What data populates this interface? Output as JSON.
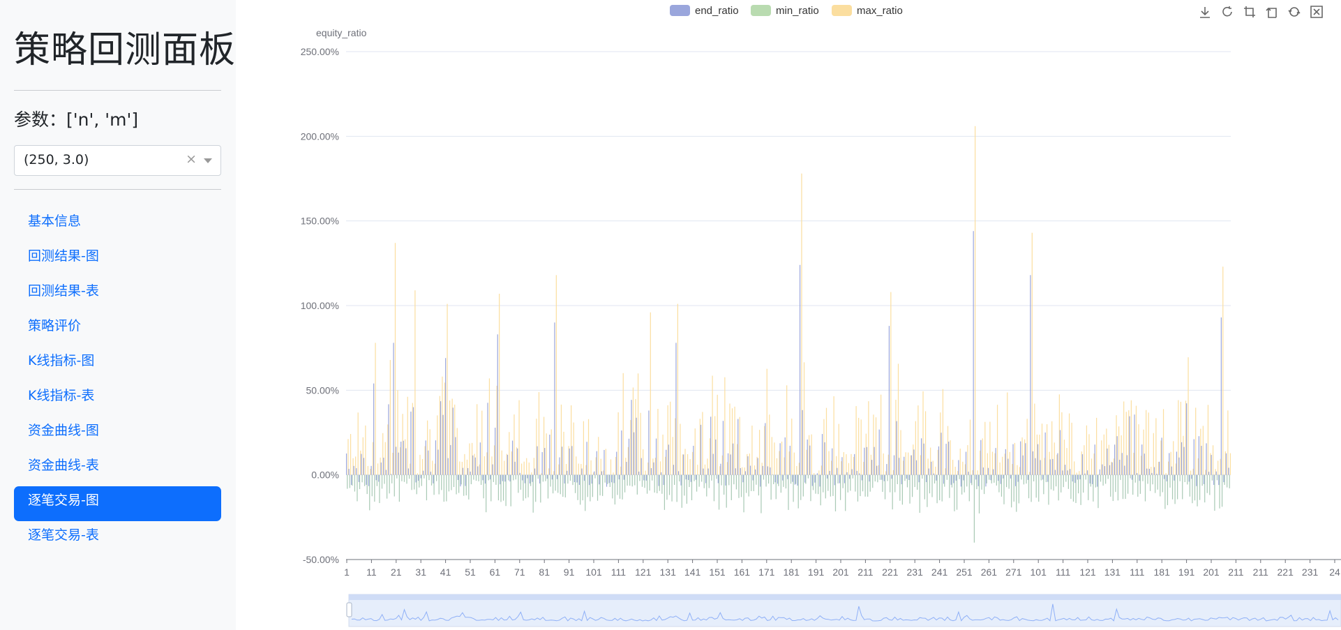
{
  "sidebar": {
    "title": "策略回测面板",
    "param_label": "参数：['n', 'm']",
    "param_select": {
      "value": "(250, 3.0)",
      "clear_icon": "×"
    },
    "nav_items": [
      {
        "label": "基本信息",
        "active": false
      },
      {
        "label": "回测结果-图",
        "active": false
      },
      {
        "label": "回测结果-表",
        "active": false
      },
      {
        "label": "策略评价",
        "active": false
      },
      {
        "label": "K线指标-图",
        "active": false
      },
      {
        "label": "K线指标-表",
        "active": false
      },
      {
        "label": "资金曲线-图",
        "active": false
      },
      {
        "label": "资金曲线-表",
        "active": false
      },
      {
        "label": "逐笔交易-图",
        "active": true
      },
      {
        "label": "逐笔交易-表",
        "active": false
      }
    ]
  },
  "toolbar": {
    "icons": [
      "download-icon",
      "refresh-icon",
      "crop-icon",
      "crop-back-icon",
      "restore-icon",
      "dataview-icon"
    ]
  },
  "colors": {
    "end_ratio": "#9aa6dc",
    "min_ratio": "#b9dbb0",
    "max_ratio": "#fbde9f",
    "accent": "#0d6efd",
    "gridline": "#e0e6f1"
  },
  "chart_data": {
    "type": "bar",
    "ylabel": "equity_ratio",
    "legend": [
      "end_ratio",
      "min_ratio",
      "max_ratio"
    ],
    "legend_position": "top-center",
    "ylim": [
      -0.5,
      2.5
    ],
    "y_ticks": [
      -0.5,
      0.0,
      0.5,
      1.0,
      1.5,
      2.0,
      2.5
    ],
    "y_tick_labels": [
      "-50.00%",
      "0.00%",
      "50.00%",
      "100.00%",
      "150.00%",
      "200.00%",
      "250.00%"
    ],
    "x_tick_labels": [
      "1",
      "11",
      "21",
      "31",
      "41",
      "51",
      "61",
      "71",
      "81",
      "91",
      "101",
      "111",
      "121",
      "131",
      "141",
      "151",
      "161",
      "171",
      "181",
      "191",
      "201",
      "211",
      "221",
      "231",
      "241",
      "251",
      "261",
      "271",
      "101",
      "111",
      "121",
      "131",
      "111",
      "181",
      "191",
      "201",
      "211",
      "211",
      "221",
      "231",
      "24"
    ],
    "highlights": [
      {
        "x": 11,
        "end_ratio": 0.54,
        "max_ratio": 0.78
      },
      {
        "x": 19,
        "end_ratio": 0.78,
        "max_ratio": 1.37
      },
      {
        "x": 27,
        "end_ratio": 0.4,
        "max_ratio": 1.09
      },
      {
        "x": 40,
        "end_ratio": 0.69,
        "max_ratio": 1.01
      },
      {
        "x": 61,
        "end_ratio": 0.83,
        "max_ratio": 1.07
      },
      {
        "x": 84,
        "end_ratio": 0.9,
        "max_ratio": 1.18
      },
      {
        "x": 122,
        "end_ratio": 0.38,
        "max_ratio": 0.96
      },
      {
        "x": 133,
        "end_ratio": 0.78,
        "max_ratio": 1.01
      },
      {
        "x": 183,
        "end_ratio": 1.24,
        "max_ratio": 1.78
      },
      {
        "x": 219,
        "end_ratio": 0.88,
        "max_ratio": 1.08
      },
      {
        "x": 253,
        "end_ratio": 1.44,
        "max_ratio": 2.06,
        "min_ratio": -0.4
      },
      {
        "x": 276,
        "end_ratio": 1.18,
        "max_ratio": 1.43
      },
      {
        "x": 353,
        "end_ratio": 0.93,
        "max_ratio": 1.23
      }
    ],
    "x_count": 357,
    "grid": true,
    "datazoom": true
  }
}
